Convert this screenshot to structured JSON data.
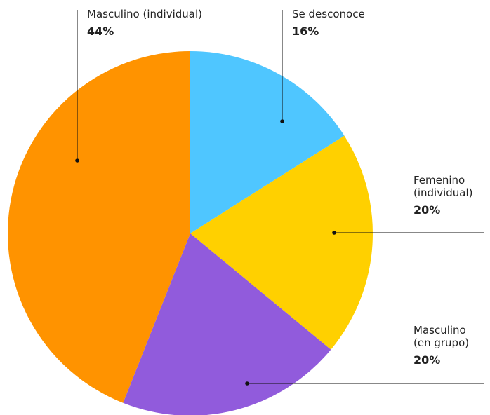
{
  "chart_data": {
    "type": "pie",
    "title": "",
    "slices": [
      {
        "label": "Se desconoce",
        "percent_label": "16%",
        "value": 16,
        "color": "#4fc6ff"
      },
      {
        "label": "Femenino (individual)",
        "percent_label": "20%",
        "value": 20,
        "color": "#ffd000"
      },
      {
        "label": "Masculino (en grupo)",
        "percent_label": "20%",
        "value": 20,
        "color": "#915bdc"
      },
      {
        "label": "Masculino (individual)",
        "percent_label": "44%",
        "value": 44,
        "color": "#ff9300"
      }
    ],
    "legend": "callout labels"
  }
}
